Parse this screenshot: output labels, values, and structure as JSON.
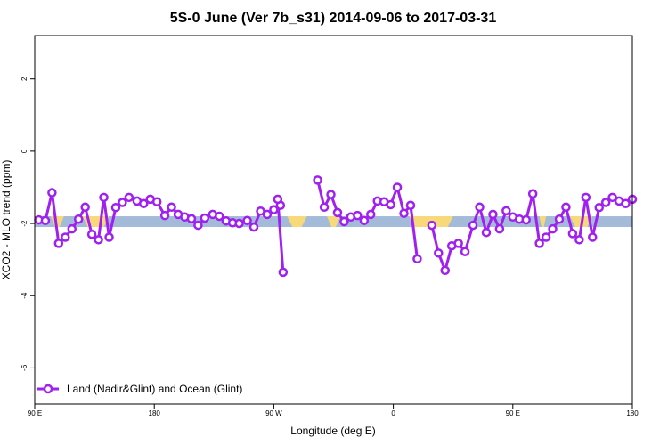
{
  "chart_data": {
    "type": "line",
    "title": "5S-0 June (Ver 7b_s31)   2014-09-06 to 2017-03-31",
    "xlabel": "Longitude (deg E)",
    "ylabel": "XCO2 - MLO trend (ppm)",
    "xlim": [
      0,
      450
    ],
    "ylim": [
      -7,
      3.2
    ],
    "xticks": [
      {
        "value": 0,
        "label": "90 E"
      },
      {
        "value": 90,
        "label": "180"
      },
      {
        "value": 180,
        "label": "90 W"
      },
      {
        "value": 270,
        "label": "0"
      },
      {
        "value": 360,
        "label": "90 E"
      },
      {
        "value": 450,
        "label": "180"
      }
    ],
    "yticks": [
      {
        "value": 2,
        "label": "2"
      },
      {
        "value": 0,
        "label": "0"
      },
      {
        "value": -2,
        "label": "-2"
      },
      {
        "value": -4,
        "label": "-4"
      },
      {
        "value": -6,
        "label": "-6"
      }
    ],
    "grid": false,
    "legend": {
      "position": "bottom-left",
      "label": "Land (Nadir&Glint) and Ocean (Glint)"
    },
    "band": {
      "y": -1.95,
      "ocean_color": "#a3bbd8",
      "land_color": "#f7d97a"
    },
    "land_segments": [
      [
        12,
        22
      ],
      [
        36,
        56
      ],
      [
        190,
        205
      ],
      [
        220,
        230
      ],
      [
        282,
        315
      ],
      [
        380,
        385
      ],
      [
        403,
        420
      ]
    ],
    "series": [
      {
        "name": "Land (Nadir&Glint) and Ocean (Glint)",
        "color": "#a020f0",
        "segments": [
          {
            "x": [
              3,
              8,
              13,
              18,
              23,
              28,
              33,
              38,
              43,
              48,
              52,
              56,
              61,
              66,
              71,
              77,
              82,
              87,
              92,
              98,
              103,
              108,
              113,
              118,
              123,
              128,
              134,
              139,
              144,
              149,
              154,
              160,
              165,
              170,
              175,
              180,
              185
            ],
            "y": [
              -1.9,
              -1.92,
              -1.15,
              -2.55,
              -2.38,
              -2.15,
              -1.88,
              -1.55,
              -2.3,
              -2.45,
              -1.28,
              -2.38,
              -1.56,
              -1.42,
              -1.28,
              -1.38,
              -1.45,
              -1.33,
              -1.4,
              -1.78,
              -1.55,
              -1.75,
              -1.82,
              -1.87,
              -2.05,
              -1.85,
              -1.75,
              -1.8,
              -1.93,
              -1.98,
              -2.0,
              -1.92,
              -2.1,
              -1.66,
              -1.75,
              -1.62,
              -1.5
            ]
          },
          {
            "x": [
              183,
              187
            ],
            "y": [
              -1.33,
              -3.35
            ]
          },
          {
            "x": [
              213,
              218,
              223,
              228,
              233,
              238,
              243,
              248,
              253,
              258,
              263,
              268,
              273,
              278,
              283,
              288
            ],
            "y": [
              -0.8,
              -1.55,
              -1.2,
              -1.7,
              -1.95,
              -1.82,
              -1.78,
              -1.92,
              -1.75,
              -1.38,
              -1.4,
              -1.48,
              -1.0,
              -1.72,
              -1.5,
              -2.98
            ]
          },
          {
            "x": [
              299,
              304,
              309,
              314,
              319,
              324,
              330,
              335,
              340,
              345,
              350,
              355,
              360,
              365,
              370,
              375,
              380,
              385,
              390,
              395,
              400,
              405,
              410,
              415,
              420,
              425,
              430,
              435,
              440,
              445,
              450
            ],
            "y": [
              -2.05,
              -2.82,
              -3.3,
              -2.62,
              -2.55,
              -2.78,
              -2.05,
              -1.55,
              -2.25,
              -1.75,
              -2.15,
              -1.65,
              -1.82,
              -1.88,
              -1.9,
              -1.18,
              -2.55,
              -2.38,
              -2.15,
              -1.88,
              -1.55,
              -2.28,
              -2.45,
              -1.28,
              -2.38,
              -1.56,
              -1.42,
              -1.28,
              -1.38,
              -1.45,
              -1.33
            ]
          }
        ]
      }
    ]
  }
}
